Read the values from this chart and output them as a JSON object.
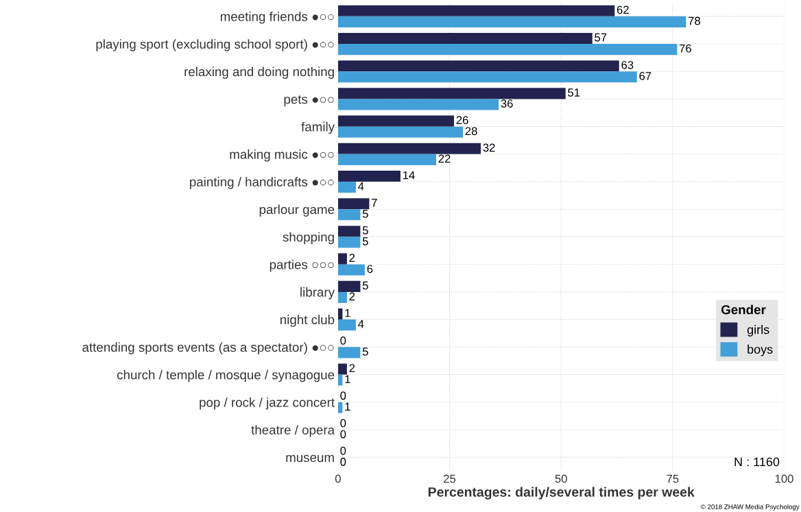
{
  "chart_data": {
    "type": "bar",
    "orientation": "horizontal",
    "categories": [
      "meeting friends ●○○",
      "playing sport (excluding school sport) ●○○",
      "relaxing and doing nothing",
      "pets ●○○",
      "family",
      "making music ●○○",
      "painting / handicrafts ●○○",
      "parlour game",
      "shopping",
      "parties ○○○",
      "library",
      "night club",
      "attending sports events (as a spectator) ●○○",
      "church / temple / mosque / synagogue",
      "pop / rock / jazz concert",
      "theatre / opera",
      "museum"
    ],
    "series": [
      {
        "name": "girls",
        "color": "#22244f",
        "values": [
          62,
          57,
          63,
          51,
          26,
          32,
          14,
          7,
          5,
          2,
          5,
          1,
          0,
          2,
          0,
          0,
          0
        ]
      },
      {
        "name": "boys",
        "color": "#439fd8",
        "values": [
          78,
          76,
          67,
          36,
          28,
          22,
          4,
          5,
          5,
          6,
          2,
          4,
          5,
          1,
          1,
          0,
          0
        ]
      }
    ],
    "xlabel": "Percentages: daily/several times per week",
    "xlim": [
      0,
      100
    ],
    "xticks": [
      0,
      25,
      50,
      75,
      100
    ],
    "legend_title": "Gender",
    "legend": "right",
    "grid": true,
    "data_labels": true,
    "annotations": [
      "N : 1160",
      "© 2018 ZHAW Media Psychology"
    ]
  }
}
